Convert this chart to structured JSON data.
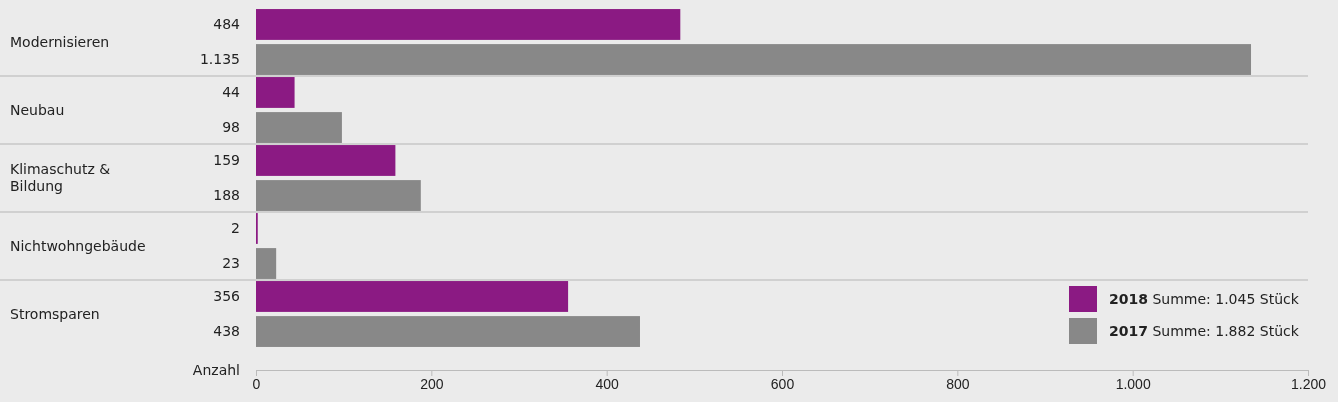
{
  "chart_data": {
    "type": "bar",
    "orientation": "horizontal",
    "categories": [
      "Modernisieren",
      "Neubau",
      "Klimaschutz & Bildung",
      "Nichtwohngebäude",
      "Stromsparen"
    ],
    "series": [
      {
        "name": "2018 Summe: 1.045 Stück",
        "color": "#8b1a83",
        "values": [
          484,
          44,
          159,
          2,
          356
        ],
        "value_labels": [
          "484",
          "44",
          "159",
          "2",
          "356"
        ]
      },
      {
        "name": "2017 Summe: 1.882 Stück",
        "color": "#888888",
        "values": [
          1135,
          98,
          188,
          23,
          438
        ],
        "value_labels": [
          "1.135",
          "98",
          "188",
          "23",
          "438"
        ]
      }
    ],
    "xlabel": "Anzahl",
    "xlim": [
      0,
      1200
    ],
    "xticks": [
      0,
      200,
      400,
      600,
      800,
      {
        "value": 1000,
        "label": "1.000"
      },
      {
        "value": 1200,
        "label": "1.200"
      }
    ],
    "grid": false,
    "legend": "bottom right"
  }
}
